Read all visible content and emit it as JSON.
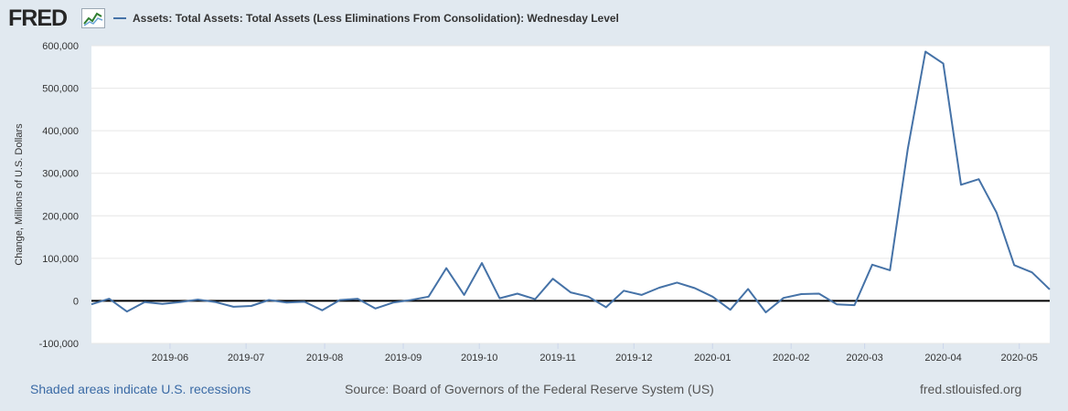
{
  "header": {
    "logo_text": "FRED",
    "legend_label": "Assets: Total Assets: Total Assets (Less Eliminations From Consolidation): Wednesday Level"
  },
  "footer": {
    "recession_note": "Shaded areas indicate U.S. recessions",
    "source": "Source: Board of Governors of the Federal Reserve System (US)",
    "url": "fred.stlouisfed.org"
  },
  "colors": {
    "series": "#4572a7",
    "background": "#e1e9f0",
    "plot_background": "#ffffff",
    "zero_line": "#000000",
    "gridline": "#e6e6e6"
  },
  "chart_data": {
    "type": "line",
    "ylabel": "Change, Millions of U.S. Dollars",
    "xlabel": "",
    "ylim": [
      -100000,
      600000
    ],
    "yticks": [
      -100000,
      0,
      100000,
      200000,
      300000,
      400000,
      500000,
      600000
    ],
    "ytick_labels": [
      "-100,000",
      "0",
      "100,000",
      "200,000",
      "300,000",
      "400,000",
      "500,000",
      "600,000"
    ],
    "xlim": [
      "2019-05-01",
      "2020-05-13"
    ],
    "xticks": [
      "2019-06-01",
      "2019-07-01",
      "2019-08-01",
      "2019-09-01",
      "2019-10-01",
      "2019-11-01",
      "2019-12-01",
      "2020-01-01",
      "2020-02-01",
      "2020-03-01",
      "2020-04-01",
      "2020-05-01"
    ],
    "xtick_labels": [
      "2019-06",
      "2019-07",
      "2019-08",
      "2019-09",
      "2019-10",
      "2019-11",
      "2019-12",
      "2020-01",
      "2020-02",
      "2020-03",
      "2020-04",
      "2020-05"
    ],
    "grid": true,
    "legend_position": "top",
    "series": [
      {
        "name": "Assets: Total Assets: Total Assets (Less Eliminations From Consolidation): Wednesday Level",
        "x": [
          "2019-05-01",
          "2019-05-08",
          "2019-05-15",
          "2019-05-22",
          "2019-05-29",
          "2019-06-05",
          "2019-06-12",
          "2019-06-19",
          "2019-06-26",
          "2019-07-03",
          "2019-07-10",
          "2019-07-17",
          "2019-07-24",
          "2019-07-31",
          "2019-08-07",
          "2019-08-14",
          "2019-08-21",
          "2019-08-28",
          "2019-09-04",
          "2019-09-11",
          "2019-09-18",
          "2019-09-25",
          "2019-10-02",
          "2019-10-09",
          "2019-10-16",
          "2019-10-23",
          "2019-10-30",
          "2019-11-06",
          "2019-11-13",
          "2019-11-20",
          "2019-11-27",
          "2019-12-04",
          "2019-12-11",
          "2019-12-18",
          "2019-12-25",
          "2020-01-01",
          "2020-01-08",
          "2020-01-15",
          "2020-01-22",
          "2020-01-29",
          "2020-02-05",
          "2020-02-12",
          "2020-02-19",
          "2020-02-26",
          "2020-03-04",
          "2020-03-11",
          "2020-03-18",
          "2020-03-25",
          "2020-04-01",
          "2020-04-08",
          "2020-04-15",
          "2020-04-22",
          "2020-04-29",
          "2020-05-06",
          "2020-05-13"
        ],
        "values": [
          -8000,
          5000,
          -25000,
          -3000,
          -7000,
          -3000,
          3000,
          -3000,
          -14000,
          -12000,
          2000,
          -4000,
          -2000,
          -22000,
          2000,
          5000,
          -18000,
          -4000,
          2000,
          10000,
          77000,
          14000,
          89000,
          6000,
          17000,
          4000,
          52000,
          20000,
          10000,
          -15000,
          24000,
          14000,
          31000,
          43000,
          30000,
          10000,
          -21000,
          28000,
          -27000,
          7000,
          16000,
          17000,
          -8000,
          -10000,
          85000,
          72000,
          356000,
          586000,
          558000,
          273000,
          286000,
          208000,
          84000,
          67000,
          27000
        ]
      }
    ]
  }
}
